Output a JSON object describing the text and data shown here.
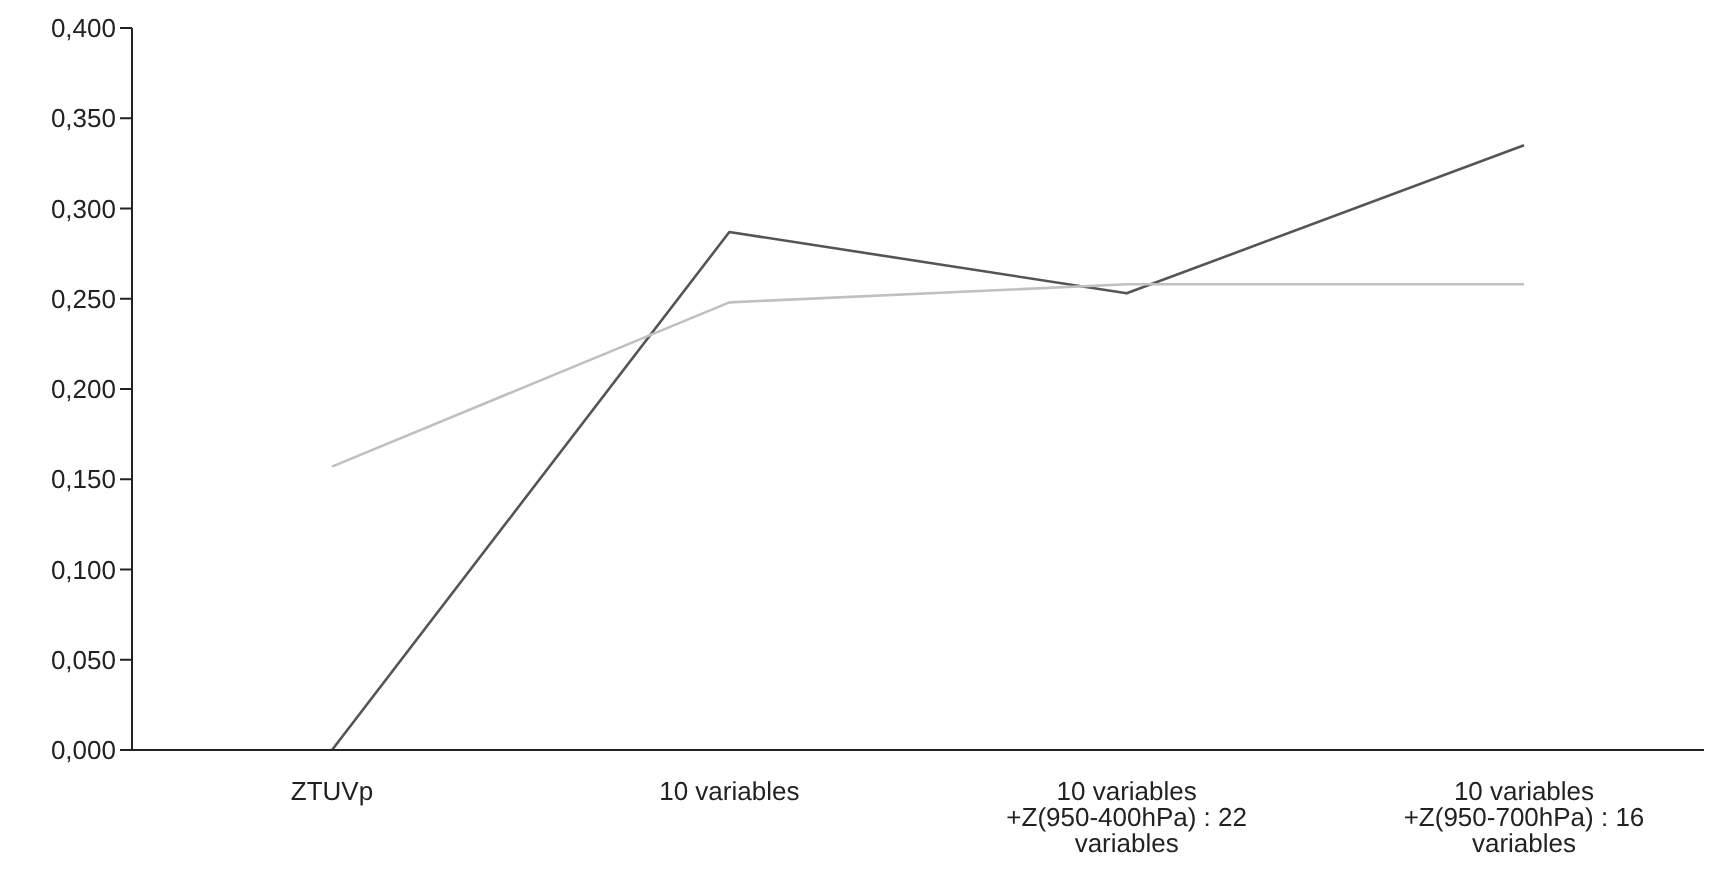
{
  "chart_data": {
    "type": "line",
    "categories": [
      "ZTUVp",
      "10 variables",
      "10 variables +Z(950-400hPa) : 22 variables",
      "10 variables +Z(950-700hPa) : 16 variables"
    ],
    "series": [
      {
        "color": "#555555",
        "values": [
          0,
          0.287,
          0.253,
          0.335
        ]
      },
      {
        "color": "#c0c0c0",
        "values": [
          0.157,
          0.248,
          0.258,
          0.258
        ]
      }
    ],
    "ylim": [
      0,
      0.4
    ],
    "yticks": [
      {
        "value": 0,
        "label": "0,000"
      },
      {
        "value": 0.05,
        "label": "0,050"
      },
      {
        "value": 0.1,
        "label": "0,100"
      },
      {
        "value": 0.15,
        "label": "0,150"
      },
      {
        "value": 0.2,
        "label": "0,200"
      },
      {
        "value": 0.25,
        "label": "0,250"
      },
      {
        "value": 0.3,
        "label": "0,300"
      },
      {
        "value": 0.35,
        "label": "0,350"
      },
      {
        "value": 0.4,
        "label": "0,400"
      }
    ],
    "grid": false,
    "legend": false,
    "marker": "none",
    "line_style": "solid"
  }
}
